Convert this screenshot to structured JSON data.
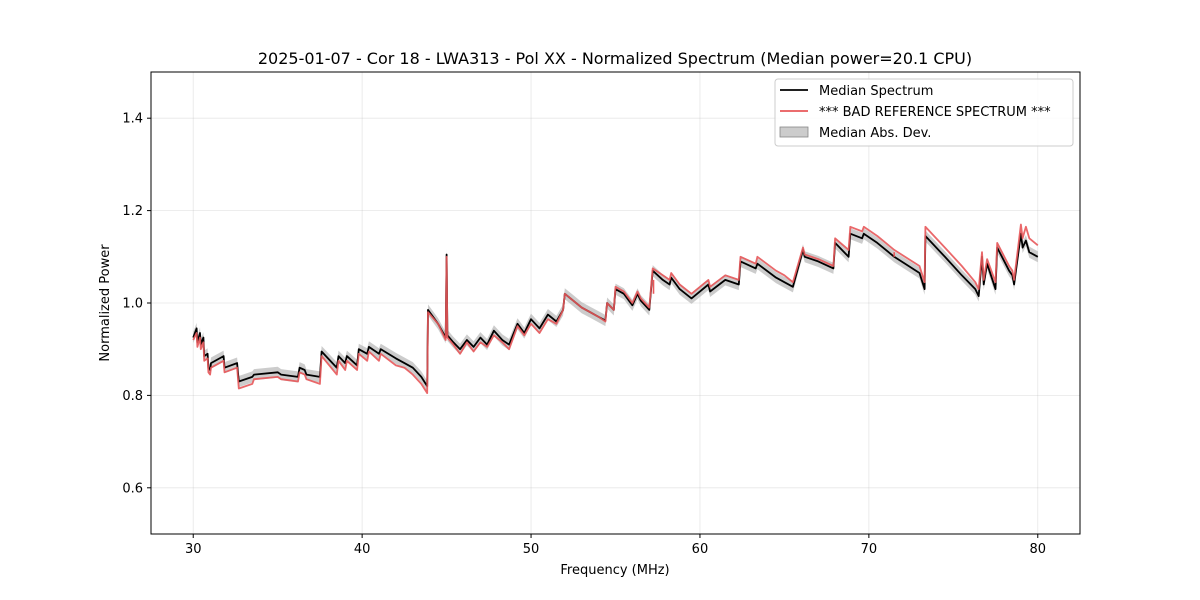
{
  "chart_data": {
    "type": "line",
    "title": "2025-01-07 - Cor 18 - LWA313 - Pol XX - Normalized Spectrum (Median power=20.1 CPU)",
    "xlabel": "Frequency (MHz)",
    "ylabel": "Normalized Power",
    "xlim": [
      27.5,
      82.5
    ],
    "ylim": [
      0.5,
      1.5
    ],
    "xticks": [
      30,
      40,
      50,
      60,
      70,
      80
    ],
    "yticks": [
      0.6,
      0.8,
      1.0,
      1.2,
      1.4
    ],
    "xtick_labels": [
      "30",
      "40",
      "50",
      "60",
      "70",
      "80"
    ],
    "ytick_labels": [
      "0.6",
      "0.8",
      "1.0",
      "1.2",
      "1.4"
    ],
    "grid": true,
    "legend_position": "top-right",
    "colors": {
      "median": "#000000",
      "reference": "#e8585a",
      "band": "#aaaaaa"
    },
    "series": [
      {
        "name": "Median Spectrum",
        "x": [
          30.0,
          30.2,
          30.25,
          30.4,
          30.45,
          30.6,
          30.65,
          30.85,
          30.9,
          31.0,
          31.05,
          31.8,
          31.85,
          32.6,
          32.7,
          33.5,
          33.6,
          35.0,
          35.2,
          36.2,
          36.3,
          36.6,
          36.7,
          37.5,
          37.6,
          38.5,
          38.6,
          39.0,
          39.1,
          39.7,
          39.8,
          40.3,
          40.4,
          41.0,
          41.1,
          42.0,
          42.5,
          43.0,
          43.5,
          43.85,
          43.9,
          44.5,
          44.95,
          45.0,
          45.05,
          45.4,
          45.8,
          46.2,
          46.6,
          47.0,
          47.4,
          47.8,
          48.3,
          48.7,
          49.2,
          49.6,
          50.0,
          50.5,
          51.0,
          51.5,
          51.9,
          52.0,
          52.5,
          53.0,
          53.5,
          54.0,
          54.4,
          54.5,
          54.9,
          55.0,
          55.5,
          56.0,
          56.3,
          56.5,
          57.0,
          57.2,
          57.8,
          58.2,
          58.3,
          58.8,
          59.5,
          60.5,
          60.6,
          61.5,
          62.3,
          62.4,
          63.3,
          63.4,
          64.5,
          65.0,
          65.5,
          66.1,
          66.2,
          67.0,
          67.9,
          68.0,
          68.8,
          68.9,
          69.6,
          69.7,
          70.5,
          71.5,
          73.0,
          73.3,
          73.35,
          74.5,
          75.5,
          76.3,
          76.5,
          76.7,
          76.8,
          77.0,
          77.5,
          77.6,
          78.3,
          78.5,
          78.6,
          79.0,
          79.1,
          79.3,
          79.5,
          80.0
        ],
        "y": [
          0.925,
          0.945,
          0.915,
          0.935,
          0.91,
          0.925,
          0.885,
          0.89,
          0.86,
          0.855,
          0.87,
          0.885,
          0.86,
          0.87,
          0.83,
          0.84,
          0.845,
          0.85,
          0.845,
          0.84,
          0.86,
          0.855,
          0.845,
          0.84,
          0.895,
          0.86,
          0.885,
          0.87,
          0.885,
          0.865,
          0.9,
          0.89,
          0.905,
          0.89,
          0.9,
          0.88,
          0.87,
          0.86,
          0.84,
          0.82,
          0.985,
          0.955,
          0.925,
          1.105,
          0.93,
          0.915,
          0.9,
          0.92,
          0.905,
          0.925,
          0.91,
          0.94,
          0.92,
          0.91,
          0.955,
          0.935,
          0.965,
          0.945,
          0.975,
          0.96,
          0.985,
          1.02,
          1.005,
          0.99,
          0.98,
          0.97,
          0.962,
          1.0,
          0.985,
          1.03,
          1.02,
          0.995,
          1.02,
          1.005,
          0.985,
          1.07,
          1.05,
          1.04,
          1.055,
          1.03,
          1.01,
          1.04,
          1.025,
          1.05,
          1.04,
          1.09,
          1.075,
          1.085,
          1.055,
          1.045,
          1.035,
          1.115,
          1.1,
          1.09,
          1.075,
          1.13,
          1.1,
          1.15,
          1.14,
          1.15,
          1.13,
          1.1,
          1.065,
          1.03,
          1.145,
          1.1,
          1.06,
          1.03,
          1.015,
          1.1,
          1.04,
          1.085,
          1.03,
          1.12,
          1.07,
          1.06,
          1.04,
          1.15,
          1.12,
          1.135,
          1.11,
          1.1
        ]
      },
      {
        "name": "*** BAD REFERENCE SPECTRUM ***",
        "x": [
          30.0,
          30.2,
          30.25,
          30.4,
          30.45,
          30.6,
          30.65,
          30.85,
          30.9,
          31.0,
          31.05,
          31.8,
          31.85,
          32.6,
          32.7,
          33.5,
          33.6,
          35.0,
          35.2,
          36.2,
          36.3,
          36.6,
          36.7,
          37.5,
          37.6,
          38.5,
          38.6,
          39.0,
          39.1,
          39.7,
          39.8,
          40.3,
          40.4,
          41.0,
          41.1,
          42.0,
          42.5,
          43.0,
          43.5,
          43.85,
          43.9,
          44.5,
          44.95,
          45.0,
          45.05,
          45.4,
          45.8,
          46.2,
          46.6,
          47.0,
          47.4,
          47.8,
          48.3,
          48.7,
          49.2,
          49.6,
          50.0,
          50.5,
          51.0,
          51.5,
          51.9,
          52.0,
          52.5,
          53.0,
          53.5,
          54.0,
          54.4,
          54.5,
          54.9,
          55.0,
          55.5,
          56.0,
          56.3,
          56.5,
          57.0,
          57.2,
          57.8,
          58.2,
          58.3,
          58.8,
          59.5,
          60.5,
          60.6,
          61.5,
          62.3,
          62.4,
          63.3,
          63.4,
          64.5,
          65.0,
          65.5,
          66.1,
          66.2,
          67.0,
          67.9,
          68.0,
          68.8,
          68.9,
          69.6,
          69.7,
          70.5,
          71.5,
          73.0,
          73.3,
          73.35,
          74.5,
          75.5,
          76.3,
          76.5,
          76.7,
          76.8,
          77.0,
          77.5,
          77.6,
          78.3,
          78.5,
          78.6,
          79.0,
          79.1,
          79.3,
          79.5,
          80.0
        ],
        "y": [
          0.92,
          0.935,
          0.905,
          0.925,
          0.9,
          0.915,
          0.875,
          0.88,
          0.85,
          0.845,
          0.86,
          0.875,
          0.85,
          0.86,
          0.815,
          0.825,
          0.835,
          0.84,
          0.835,
          0.83,
          0.85,
          0.845,
          0.835,
          0.825,
          0.885,
          0.845,
          0.875,
          0.855,
          0.875,
          0.855,
          0.89,
          0.875,
          0.895,
          0.875,
          0.89,
          0.865,
          0.86,
          0.845,
          0.825,
          0.805,
          0.98,
          0.955,
          0.92,
          1.1,
          0.925,
          0.91,
          0.89,
          0.915,
          0.895,
          0.915,
          0.905,
          0.93,
          0.915,
          0.9,
          0.95,
          0.93,
          0.955,
          0.935,
          0.965,
          0.955,
          0.985,
          1.02,
          1.005,
          0.99,
          0.98,
          0.97,
          0.96,
          1.0,
          0.985,
          1.035,
          1.025,
          1.0,
          1.025,
          1.01,
          0.99,
          1.075,
          1.06,
          1.05,
          1.065,
          1.04,
          1.02,
          1.05,
          1.035,
          1.06,
          1.05,
          1.1,
          1.085,
          1.1,
          1.07,
          1.06,
          1.045,
          1.12,
          1.105,
          1.095,
          1.08,
          1.14,
          1.115,
          1.165,
          1.155,
          1.165,
          1.145,
          1.115,
          1.08,
          1.045,
          1.165,
          1.12,
          1.08,
          1.045,
          1.03,
          1.11,
          1.05,
          1.095,
          1.045,
          1.13,
          1.08,
          1.07,
          1.05,
          1.17,
          1.14,
          1.165,
          1.14,
          1.125
        ]
      }
    ],
    "band": {
      "name": "Median Abs. Dev.",
      "half_width": 0.012
    },
    "spikes": [
      {
        "x": 57.25,
        "y_from": 1.02,
        "y_to": 1.05
      },
      {
        "x": 71.5,
        "y_from": 1.1,
        "y_to": 1.11
      }
    ],
    "legend": [
      "Median Spectrum",
      "*** BAD REFERENCE SPECTRUM ***",
      "Median Abs. Dev."
    ]
  }
}
